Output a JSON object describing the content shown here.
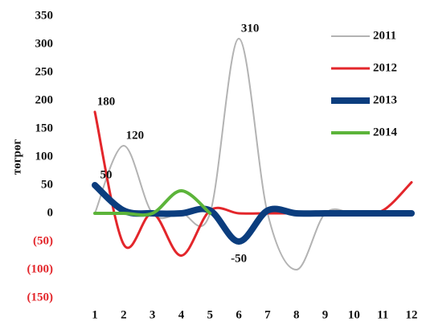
{
  "chart_data": {
    "type": "line",
    "y_label": "төгрөг",
    "categories": [
      "1",
      "2",
      "3",
      "4",
      "5",
      "6",
      "7",
      "8",
      "9",
      "10",
      "11",
      "12"
    ],
    "series": [
      {
        "name": "2011",
        "color": "#b3b3b3",
        "values": [
          0,
          120,
          0,
          0,
          0,
          310,
          0,
          -100,
          0,
          0,
          0,
          0
        ],
        "value_labels": [
          null,
          "120",
          null,
          null,
          null,
          "310",
          null,
          null,
          null,
          null,
          null,
          null
        ]
      },
      {
        "name": "2012",
        "color": "#e3262b",
        "values": [
          180,
          -55,
          0,
          -75,
          5,
          0,
          0,
          0,
          0,
          0,
          5,
          55
        ],
        "value_labels": [
          "180",
          null,
          null,
          null,
          null,
          null,
          null,
          null,
          null,
          null,
          null,
          null
        ]
      },
      {
        "name": "2013",
        "color": "#0b3d7e",
        "values": [
          50,
          5,
          0,
          0,
          5,
          -50,
          5,
          0,
          0,
          0,
          0,
          0
        ],
        "value_labels": [
          "50",
          null,
          null,
          null,
          null,
          "-50",
          null,
          null,
          null,
          null,
          null,
          null
        ]
      },
      {
        "name": "2014",
        "color": "#5cb43a",
        "values": [
          0,
          0,
          0,
          40,
          0,
          null,
          null,
          null,
          null,
          null,
          null,
          null
        ]
      }
    ],
    "ylim": [
      -150,
      350
    ],
    "yticks": [
      {
        "value": -150,
        "label": "(150)"
      },
      {
        "value": -100,
        "label": "(100)"
      },
      {
        "value": -50,
        "label": "(50)"
      },
      0,
      50,
      100,
      150,
      200,
      250,
      300,
      350
    ],
    "legend": "top-right",
    "grid": false
  }
}
